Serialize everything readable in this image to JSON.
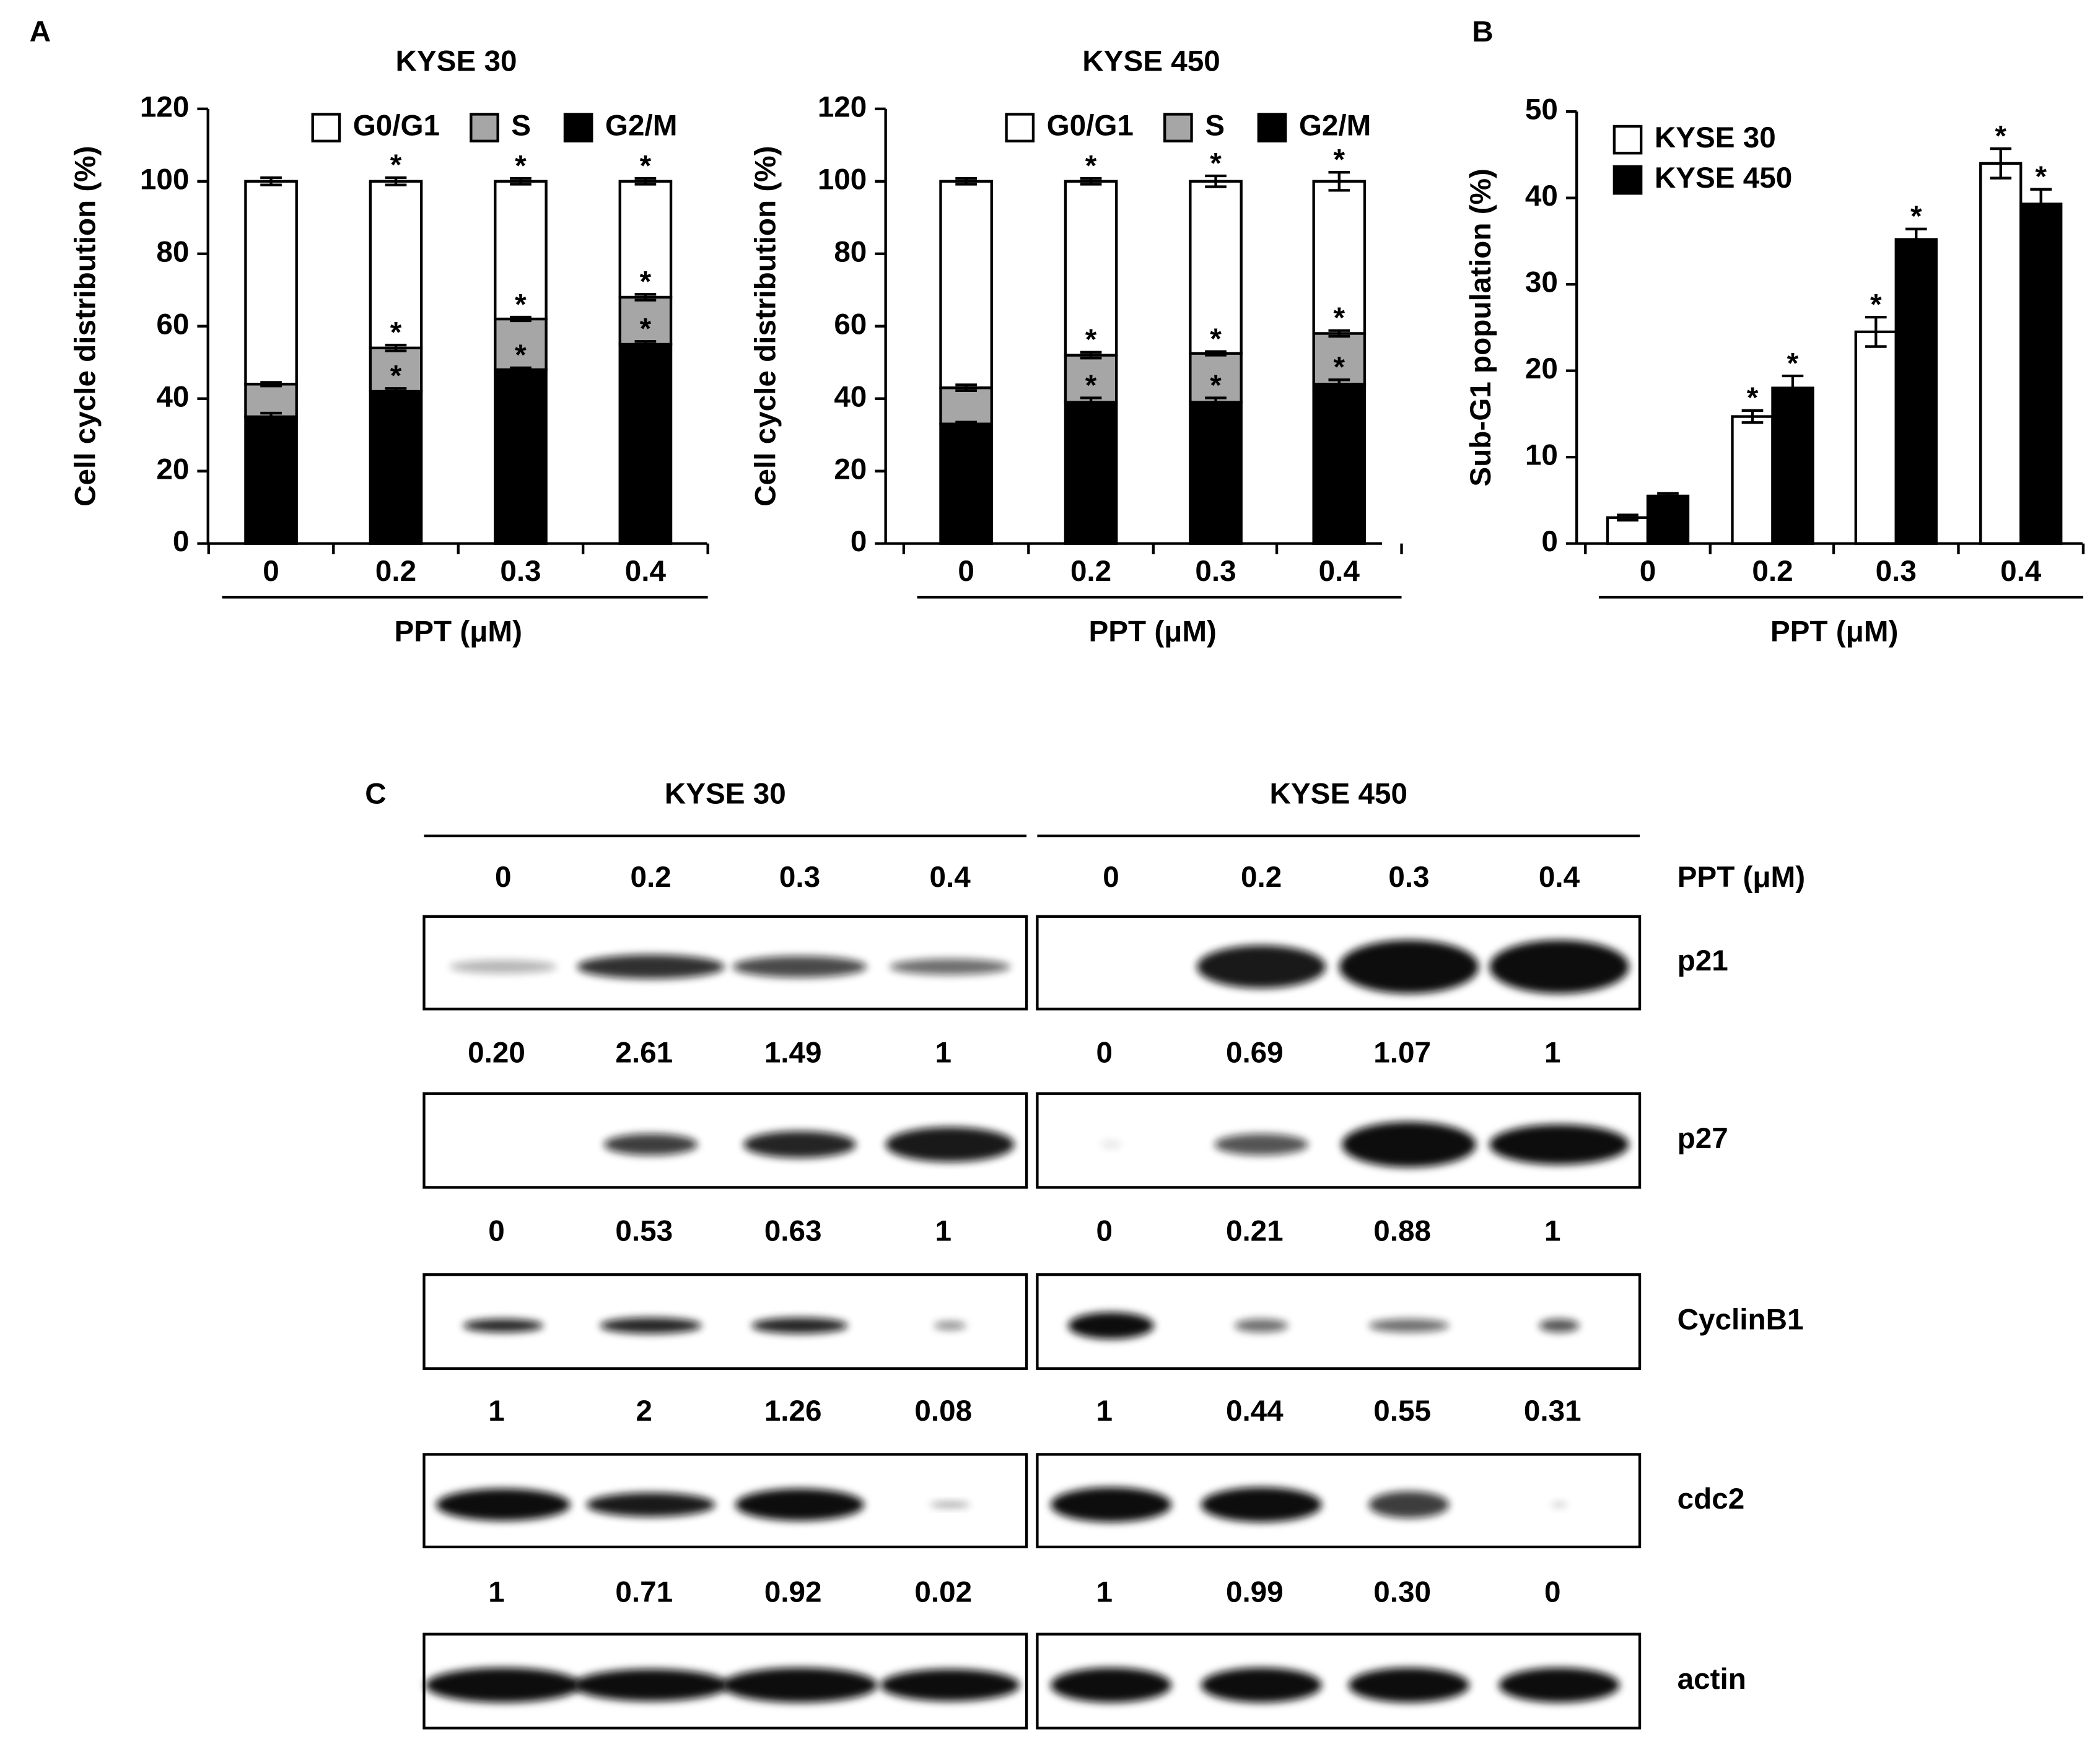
{
  "panel_labels": [
    "A",
    "B",
    "C"
  ],
  "chart_data": [
    {
      "type": "stacked_bar",
      "title": "KYSE 30",
      "y_label": "Cell cycle distribution (%)",
      "x_label": "PPT (μM)",
      "categories": [
        "0",
        "0.2",
        "0.3",
        "0.4"
      ],
      "ylim": [
        0,
        120
      ],
      "yticks": [
        0,
        20,
        40,
        60,
        80,
        100,
        120
      ],
      "legend": "top",
      "series": [
        {
          "name": "G0/G1",
          "color": "#ffffff",
          "values": [
            56,
            46,
            38,
            32
          ],
          "errors": [
            1,
            1,
            0.8,
            0.8
          ],
          "labels": [
            null,
            "*",
            "*",
            "*"
          ]
        },
        {
          "name": "S",
          "color": "#a6a6a6",
          "values": [
            9,
            12,
            14,
            13
          ],
          "errors": [
            0.5,
            0.8,
            0.5,
            0.8
          ],
          "labels": [
            null,
            "*",
            "*",
            "*"
          ]
        },
        {
          "name": "G2/M",
          "color": "#000000",
          "values": [
            35,
            42,
            48,
            55
          ],
          "errors": [
            1,
            0.8,
            0.5,
            0.8
          ],
          "labels": [
            null,
            "*",
            "*",
            "*"
          ]
        }
      ]
    },
    {
      "type": "stacked_bar",
      "title": "KYSE 450",
      "y_label": "Cell cycle distribution (%)",
      "x_label": "PPT (μM)",
      "categories": [
        "0",
        "0.2",
        "0.3",
        "0.4"
      ],
      "ylim": [
        0,
        120
      ],
      "yticks": [
        0,
        20,
        40,
        60,
        80,
        100,
        120
      ],
      "legend": "top",
      "series": [
        {
          "name": "G0/G1",
          "color": "#ffffff",
          "values": [
            57,
            48,
            47.5,
            42
          ],
          "errors": [
            0.8,
            0.8,
            1.5,
            2.5
          ],
          "labels": [
            null,
            "*",
            "*",
            "*"
          ]
        },
        {
          "name": "S",
          "color": "#a6a6a6",
          "values": [
            10,
            13,
            13.5,
            14
          ],
          "errors": [
            0.8,
            0.8,
            0.5,
            0.8
          ],
          "labels": [
            null,
            "*",
            "*",
            "*"
          ]
        },
        {
          "name": "G2/M",
          "color": "#000000",
          "values": [
            33,
            39,
            39,
            44
          ],
          "errors": [
            0.5,
            1.2,
            1.2,
            1.2
          ],
          "labels": [
            null,
            "*",
            "*",
            "*"
          ]
        }
      ]
    },
    {
      "type": "grouped_bar",
      "y_label": "Sub-G1 population (%)",
      "x_label": "PPT (μM)",
      "categories": [
        "0",
        "0.2",
        "0.3",
        "0.4"
      ],
      "ylim": [
        0,
        50
      ],
      "yticks": [
        0,
        10,
        20,
        30,
        40,
        50
      ],
      "legend": "upper left",
      "series": [
        {
          "name": "KYSE 30",
          "color": "#ffffff",
          "values": [
            3,
            14.7,
            24.5,
            44
          ],
          "errors": [
            0.3,
            0.7,
            1.7,
            1.7
          ],
          "labels": [
            null,
            "*",
            "*",
            "*"
          ]
        },
        {
          "name": "KYSE 450",
          "color": "#000000",
          "values": [
            5.5,
            18,
            35.2,
            39.3
          ],
          "errors": [
            0.3,
            1.4,
            1.2,
            1.7
          ],
          "labels": [
            null,
            "*",
            "*",
            "*"
          ]
        }
      ]
    }
  ],
  "blot": {
    "dose_label": "PPT (μM)",
    "groups": [
      {
        "name": "KYSE 30",
        "doses": [
          "0",
          "0.2",
          "0.3",
          "0.4"
        ]
      },
      {
        "name": "KYSE 450",
        "doses": [
          "0",
          "0.2",
          "0.3",
          "0.4"
        ]
      }
    ],
    "rows": [
      {
        "name": "p21",
        "quantification": [
          "0.20",
          "2.61",
          "1.49",
          "1",
          "0",
          "0.69",
          "1.07",
          "1"
        ]
      },
      {
        "name": "p27",
        "quantification": [
          "0",
          "0.53",
          "0.63",
          "1",
          "0",
          "0.21",
          "0.88",
          "1"
        ]
      },
      {
        "name": "CyclinB1",
        "quantification": [
          "1",
          "2",
          "1.26",
          "0.08",
          "1",
          "0.44",
          "0.55",
          "0.31"
        ]
      },
      {
        "name": "cdc2",
        "quantification": [
          "1",
          "0.71",
          "0.92",
          "0.02",
          "1",
          "0.99",
          "0.30",
          "0"
        ]
      },
      {
        "name": "actin"
      }
    ]
  }
}
